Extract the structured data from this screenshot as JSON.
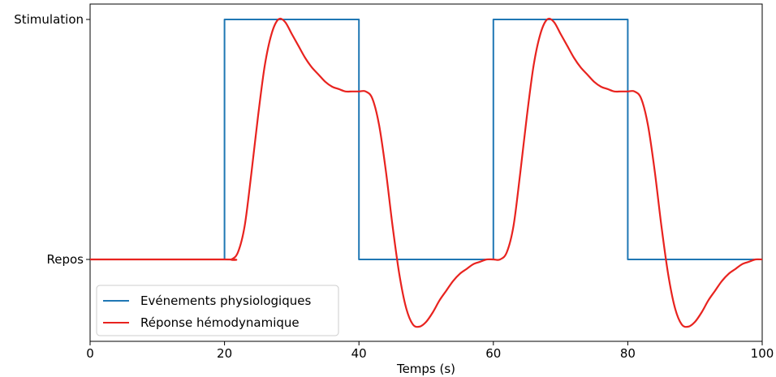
{
  "chart_data": {
    "type": "line",
    "title": "",
    "xlabel": "Temps (s)",
    "ylabel": "",
    "xlim": [
      0,
      100
    ],
    "ylim": [
      -0.3,
      1.0
    ],
    "grid": false,
    "legend_position": "bottom-left",
    "x_ticks": [
      {
        "value": 0,
        "label": "0"
      },
      {
        "value": 20,
        "label": "20"
      },
      {
        "value": 40,
        "label": "40"
      },
      {
        "value": 60,
        "label": "60"
      },
      {
        "value": 80,
        "label": "80"
      },
      {
        "value": 100,
        "label": "100"
      }
    ],
    "y_ticks": [
      {
        "value": 0,
        "label": "Repos"
      },
      {
        "value": 1,
        "label": "Stimulation"
      }
    ],
    "series": [
      {
        "name": "Evénements physiologiques",
        "color": "#1f77b4",
        "style": "step",
        "x": [
          0,
          20,
          20,
          40,
          40,
          60,
          60,
          80,
          80,
          100
        ],
        "y": [
          0,
          0,
          1,
          1,
          0,
          0,
          1,
          1,
          0,
          0
        ]
      },
      {
        "name": "Réponse hémodynamique",
        "color": "#e8231f",
        "style": "smooth",
        "x": [
          0,
          20,
          21,
          22,
          23,
          24,
          25,
          26,
          27,
          28,
          29,
          30,
          31,
          32,
          33,
          34,
          35,
          36,
          37,
          38,
          39,
          40,
          41,
          42,
          43,
          44,
          45,
          46,
          47,
          48,
          49,
          50,
          51,
          52,
          53,
          54,
          55,
          56,
          57,
          58,
          59,
          60,
          61,
          62,
          63,
          64,
          65,
          66,
          67,
          68,
          69,
          70,
          71,
          72,
          73,
          74,
          75,
          76,
          77,
          78,
          79,
          80,
          81,
          82,
          83,
          84,
          85,
          86,
          87,
          88,
          89,
          90,
          91,
          92,
          93,
          94,
          95,
          96,
          97,
          98,
          99,
          100
        ],
        "y": [
          0,
          0,
          0.0,
          0.03,
          0.14,
          0.36,
          0.6,
          0.81,
          0.94,
          1.0,
          0.99,
          0.94,
          0.89,
          0.84,
          0.8,
          0.77,
          0.74,
          0.72,
          0.71,
          0.7,
          0.7,
          0.7,
          0.7,
          0.67,
          0.56,
          0.37,
          0.14,
          -0.06,
          -0.2,
          -0.27,
          -0.28,
          -0.26,
          -0.22,
          -0.17,
          -0.13,
          -0.09,
          -0.06,
          -0.04,
          -0.02,
          -0.01,
          0.0,
          0.0,
          0.0,
          0.03,
          0.14,
          0.36,
          0.6,
          0.81,
          0.94,
          1.0,
          0.99,
          0.94,
          0.89,
          0.84,
          0.8,
          0.77,
          0.74,
          0.72,
          0.71,
          0.7,
          0.7,
          0.7,
          0.7,
          0.67,
          0.56,
          0.37,
          0.14,
          -0.06,
          -0.2,
          -0.27,
          -0.28,
          -0.26,
          -0.22,
          -0.17,
          -0.13,
          -0.09,
          -0.06,
          -0.04,
          -0.02,
          -0.01,
          0.0,
          0.0
        ]
      }
    ]
  }
}
